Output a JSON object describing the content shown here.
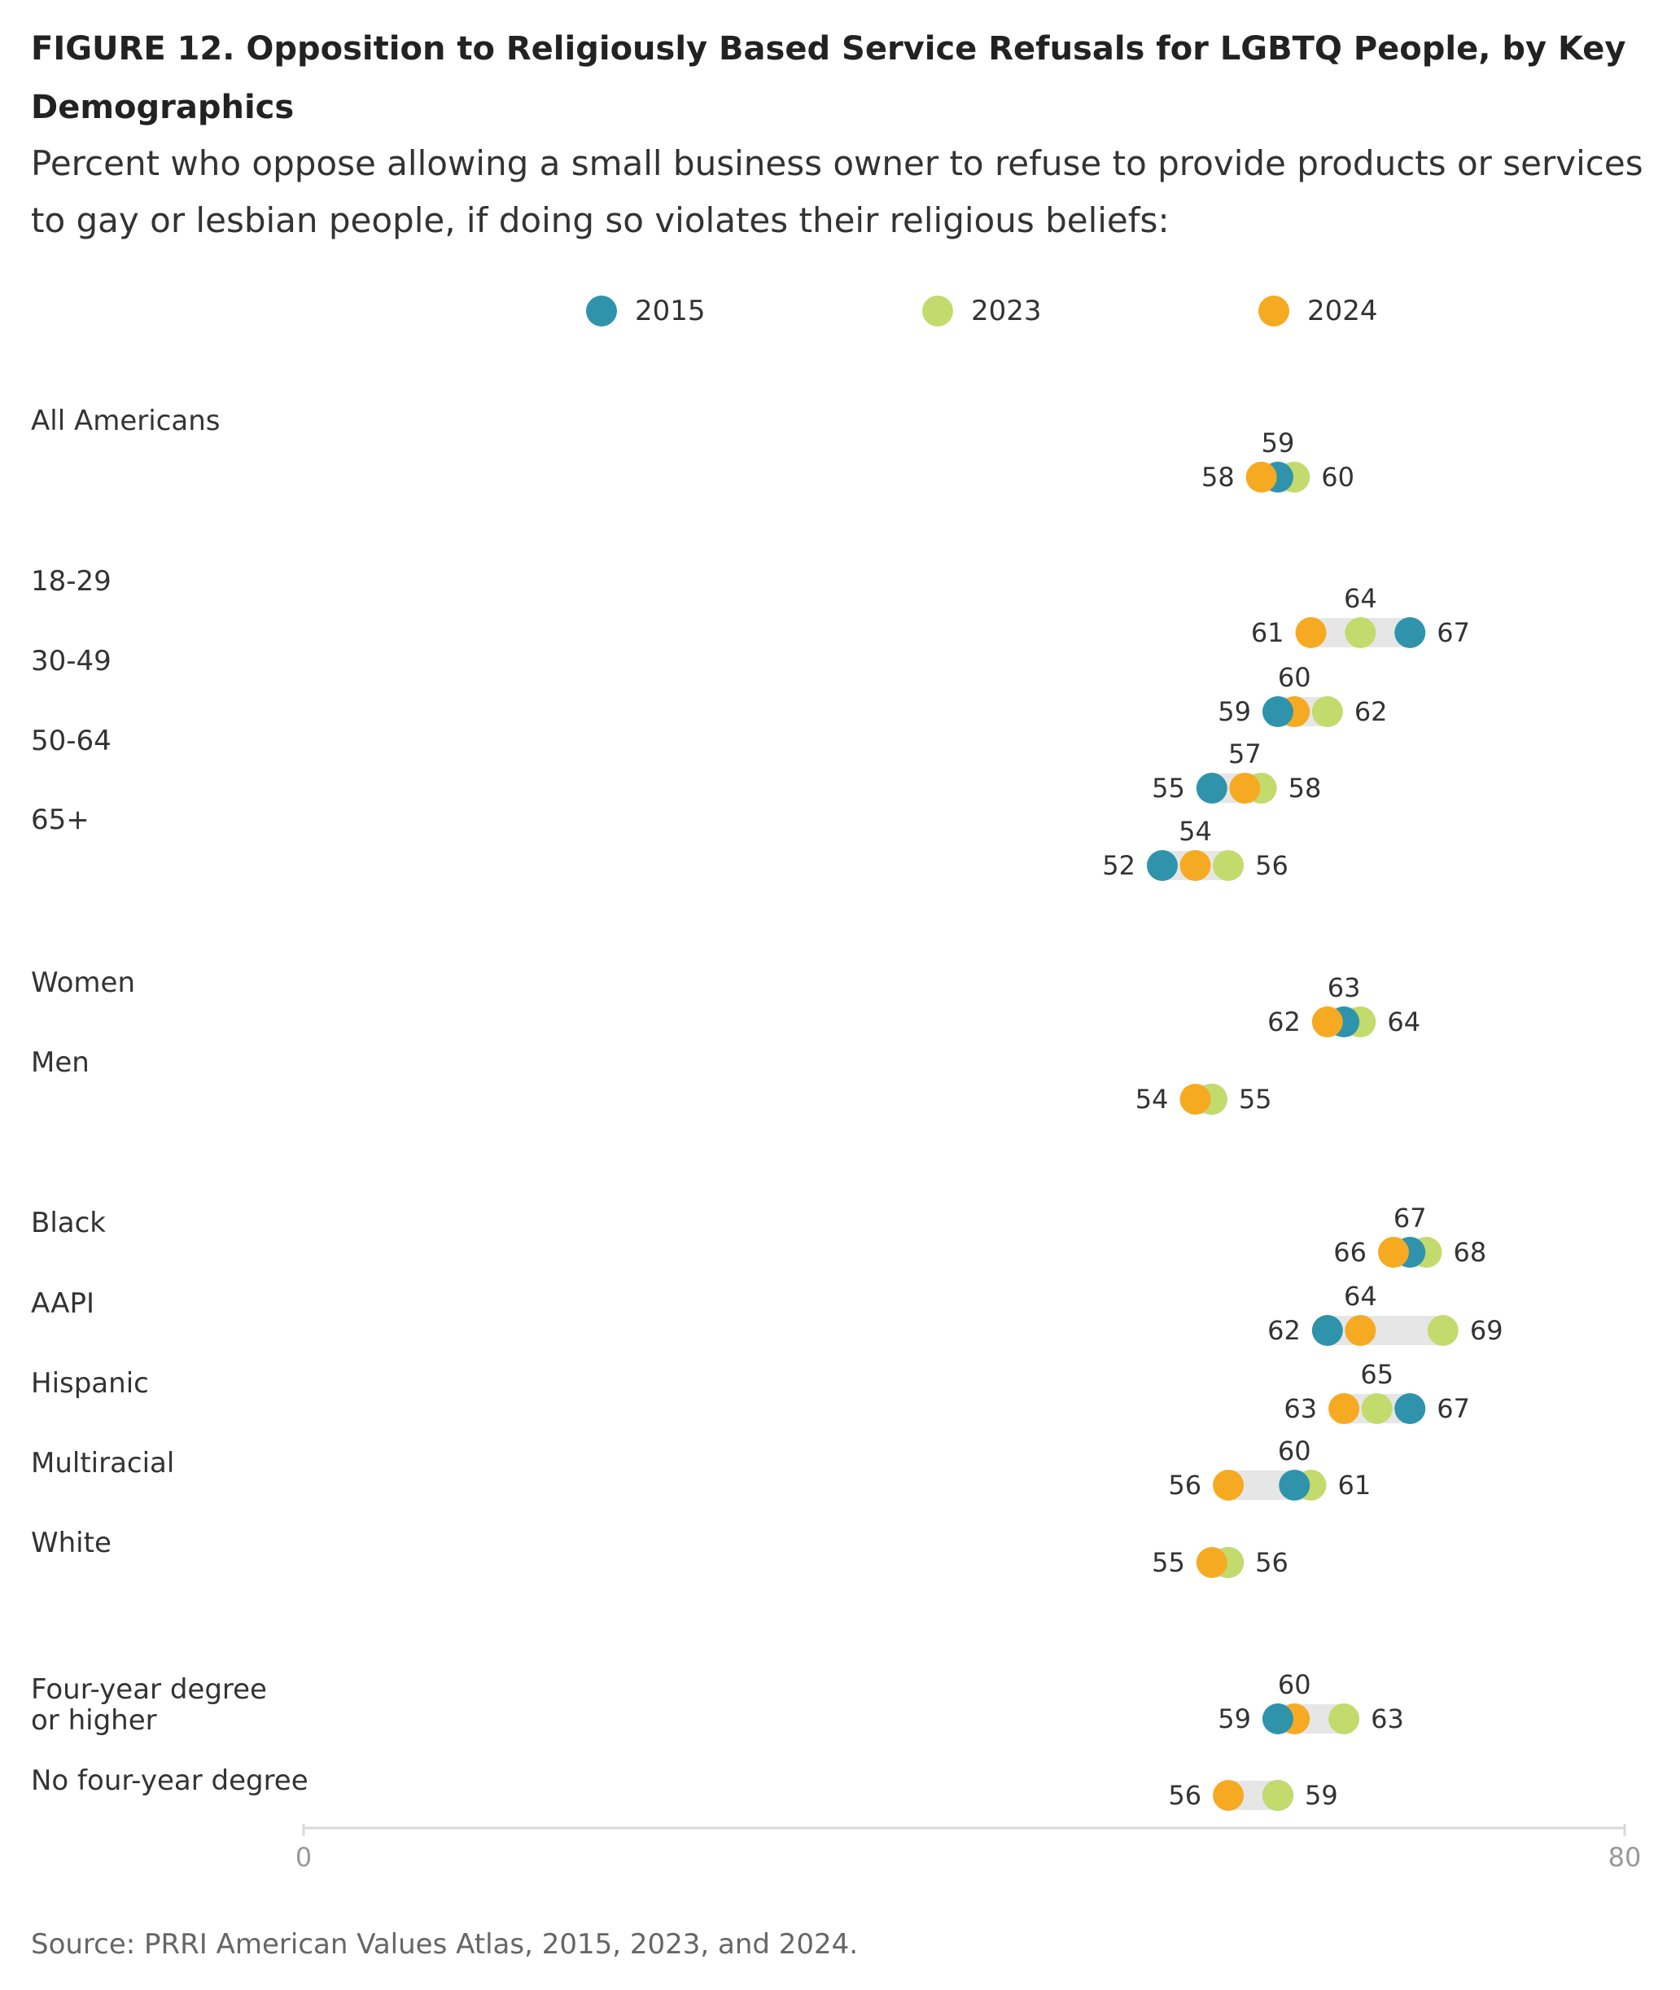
{
  "header": {
    "title": "FIGURE 12.  Opposition to Religiously Based Service Refusals for LGBTQ People, by Key Demographics",
    "subtitle": "Percent who oppose allowing a small business owner to refuse to provide products or services to gay or lesbian people, if doing so violates their religious beliefs:"
  },
  "legend": [
    {
      "name": "2015",
      "color": "#2F93AC"
    },
    {
      "name": "2023",
      "color": "#C2DB6C"
    },
    {
      "name": "2024",
      "color": "#F6AA22"
    }
  ],
  "chart_data": {
    "type": "scatter",
    "subtype": "dot-range",
    "xlim": [
      0,
      80
    ],
    "x_ticks": [
      "0",
      "80"
    ],
    "grid": false,
    "legend_position": "top",
    "series": [
      {
        "name": "2015",
        "color": "#2F93AC"
      },
      {
        "name": "2023",
        "color": "#C2DB6C"
      },
      {
        "name": "2024",
        "color": "#F6AA22"
      }
    ],
    "categories": [
      {
        "label": "All Americans",
        "y2015": 59,
        "y2023": 60,
        "y2024": 58
      },
      {
        "label": "18-29",
        "y2015": 67,
        "y2023": 64,
        "y2024": 61
      },
      {
        "label": "30-49",
        "y2015": 59,
        "y2023": 62,
        "y2024": 60
      },
      {
        "label": "50-64",
        "y2015": 55,
        "y2023": 58,
        "y2024": 57
      },
      {
        "label": "65+",
        "y2015": 52,
        "y2023": 56,
        "y2024": 54
      },
      {
        "label": "Women",
        "y2015": 63,
        "y2023": 64,
        "y2024": 62
      },
      {
        "label": "Men",
        "y2015": 55,
        "y2023": 55,
        "y2024": 54
      },
      {
        "label": "Black",
        "y2015": 67,
        "y2023": 68,
        "y2024": 66
      },
      {
        "label": "AAPI",
        "y2015": 62,
        "y2023": 69,
        "y2024": 64
      },
      {
        "label": "Hispanic",
        "y2015": 67,
        "y2023": 65,
        "y2024": 63
      },
      {
        "label": "Multiracial",
        "y2015": 60,
        "y2023": 61,
        "y2024": 56
      },
      {
        "label": "White",
        "y2015": 56,
        "y2023": 56,
        "y2024": 55
      },
      {
        "label": "Four-year degree\nor higher",
        "y2015": 59,
        "y2023": 63,
        "y2024": 60
      },
      {
        "label": "No four-year degree",
        "y2015": 59,
        "y2023": 59,
        "y2024": 56
      }
    ],
    "value_labels": [
      {
        "min": "58",
        "mid": "59",
        "max": "60"
      },
      {
        "min": "61",
        "mid": "64",
        "max": "67"
      },
      {
        "min": "59",
        "mid": "60",
        "max": "62"
      },
      {
        "min": "55",
        "mid": "57",
        "max": "58"
      },
      {
        "min": "52",
        "mid": "54",
        "max": "56"
      },
      {
        "min": "62",
        "mid": "63",
        "max": "64"
      },
      {
        "min": "54",
        "mid": "",
        "max": "55"
      },
      {
        "min": "66",
        "mid": "67",
        "max": "68"
      },
      {
        "min": "62",
        "mid": "64",
        "max": "69"
      },
      {
        "min": "63",
        "mid": "65",
        "max": "67"
      },
      {
        "min": "56",
        "mid": "60",
        "max": "61"
      },
      {
        "min": "55",
        "mid": "",
        "max": "56"
      },
      {
        "min": "59",
        "mid": "60",
        "max": "63"
      },
      {
        "min": "56",
        "mid": "",
        "max": "59"
      }
    ]
  },
  "source": "Source: PRRI American Values Atlas, 2015, 2023, and 2024."
}
